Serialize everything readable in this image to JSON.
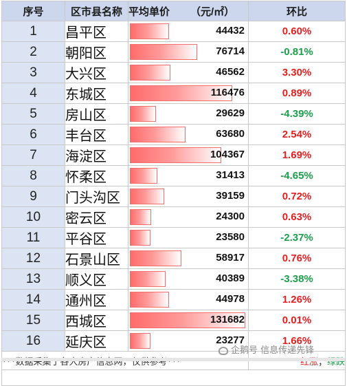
{
  "headers": {
    "index": "序号",
    "district": "区市县名称",
    "price": "平均单价",
    "unit": "（元/㎡）",
    "change": "环比"
  },
  "max_price": 131682,
  "rows": [
    {
      "index": "1",
      "district": "昌平区",
      "price": 44432,
      "change": "0.60%",
      "dir": "up"
    },
    {
      "index": "2",
      "district": "朝阳区",
      "price": 76714,
      "change": "-0.81%",
      "dir": "down"
    },
    {
      "index": "3",
      "district": "大兴区",
      "price": 46562,
      "change": "3.30%",
      "dir": "up"
    },
    {
      "index": "4",
      "district": "东城区",
      "price": 116476,
      "change": "0.89%",
      "dir": "up"
    },
    {
      "index": "5",
      "district": "房山区",
      "price": 29629,
      "change": "-4.39%",
      "dir": "down"
    },
    {
      "index": "6",
      "district": "丰台区",
      "price": 63680,
      "change": "2.54%",
      "dir": "up"
    },
    {
      "index": "7",
      "district": "海淀区",
      "price": 104367,
      "change": "1.69%",
      "dir": "up"
    },
    {
      "index": "8",
      "district": "怀柔区",
      "price": 31413,
      "change": "-4.65%",
      "dir": "down"
    },
    {
      "index": "9",
      "district": "门头沟区",
      "price": 39159,
      "change": "0.72%",
      "dir": "up"
    },
    {
      "index": "10",
      "district": "密云区",
      "price": 24300,
      "change": "0.63%",
      "dir": "up"
    },
    {
      "index": "11",
      "district": "平谷区",
      "price": 23580,
      "change": "-2.37%",
      "dir": "down"
    },
    {
      "index": "12",
      "district": "石景山区",
      "price": 58917,
      "change": "0.76%",
      "dir": "up"
    },
    {
      "index": "13",
      "district": "顺义区",
      "price": 40389,
      "change": "-3.38%",
      "dir": "down"
    },
    {
      "index": "14",
      "district": "通州区",
      "price": 44978,
      "change": "1.26%",
      "dir": "up"
    },
    {
      "index": "15",
      "district": "西城区",
      "price": 131682,
      "change": "0.01%",
      "dir": "up"
    },
    {
      "index": "16",
      "district": "延庆区",
      "price": 23277,
      "change": "1.66%",
      "dir": "up"
    }
  ],
  "footer": {
    "note": "***数据采集于各大房产信息网，仅供参考***",
    "legend_up": "红涨",
    "legend_sep": "；",
    "legend_down": "绿跌"
  },
  "watermark": "企鹅号 信息传递先锋",
  "colors": {
    "up": "#e02020",
    "down": "#1aa04a",
    "header_bg": "#ccd6ec",
    "index_bg": "#dce3f2",
    "bar": "#ff6b6b"
  }
}
